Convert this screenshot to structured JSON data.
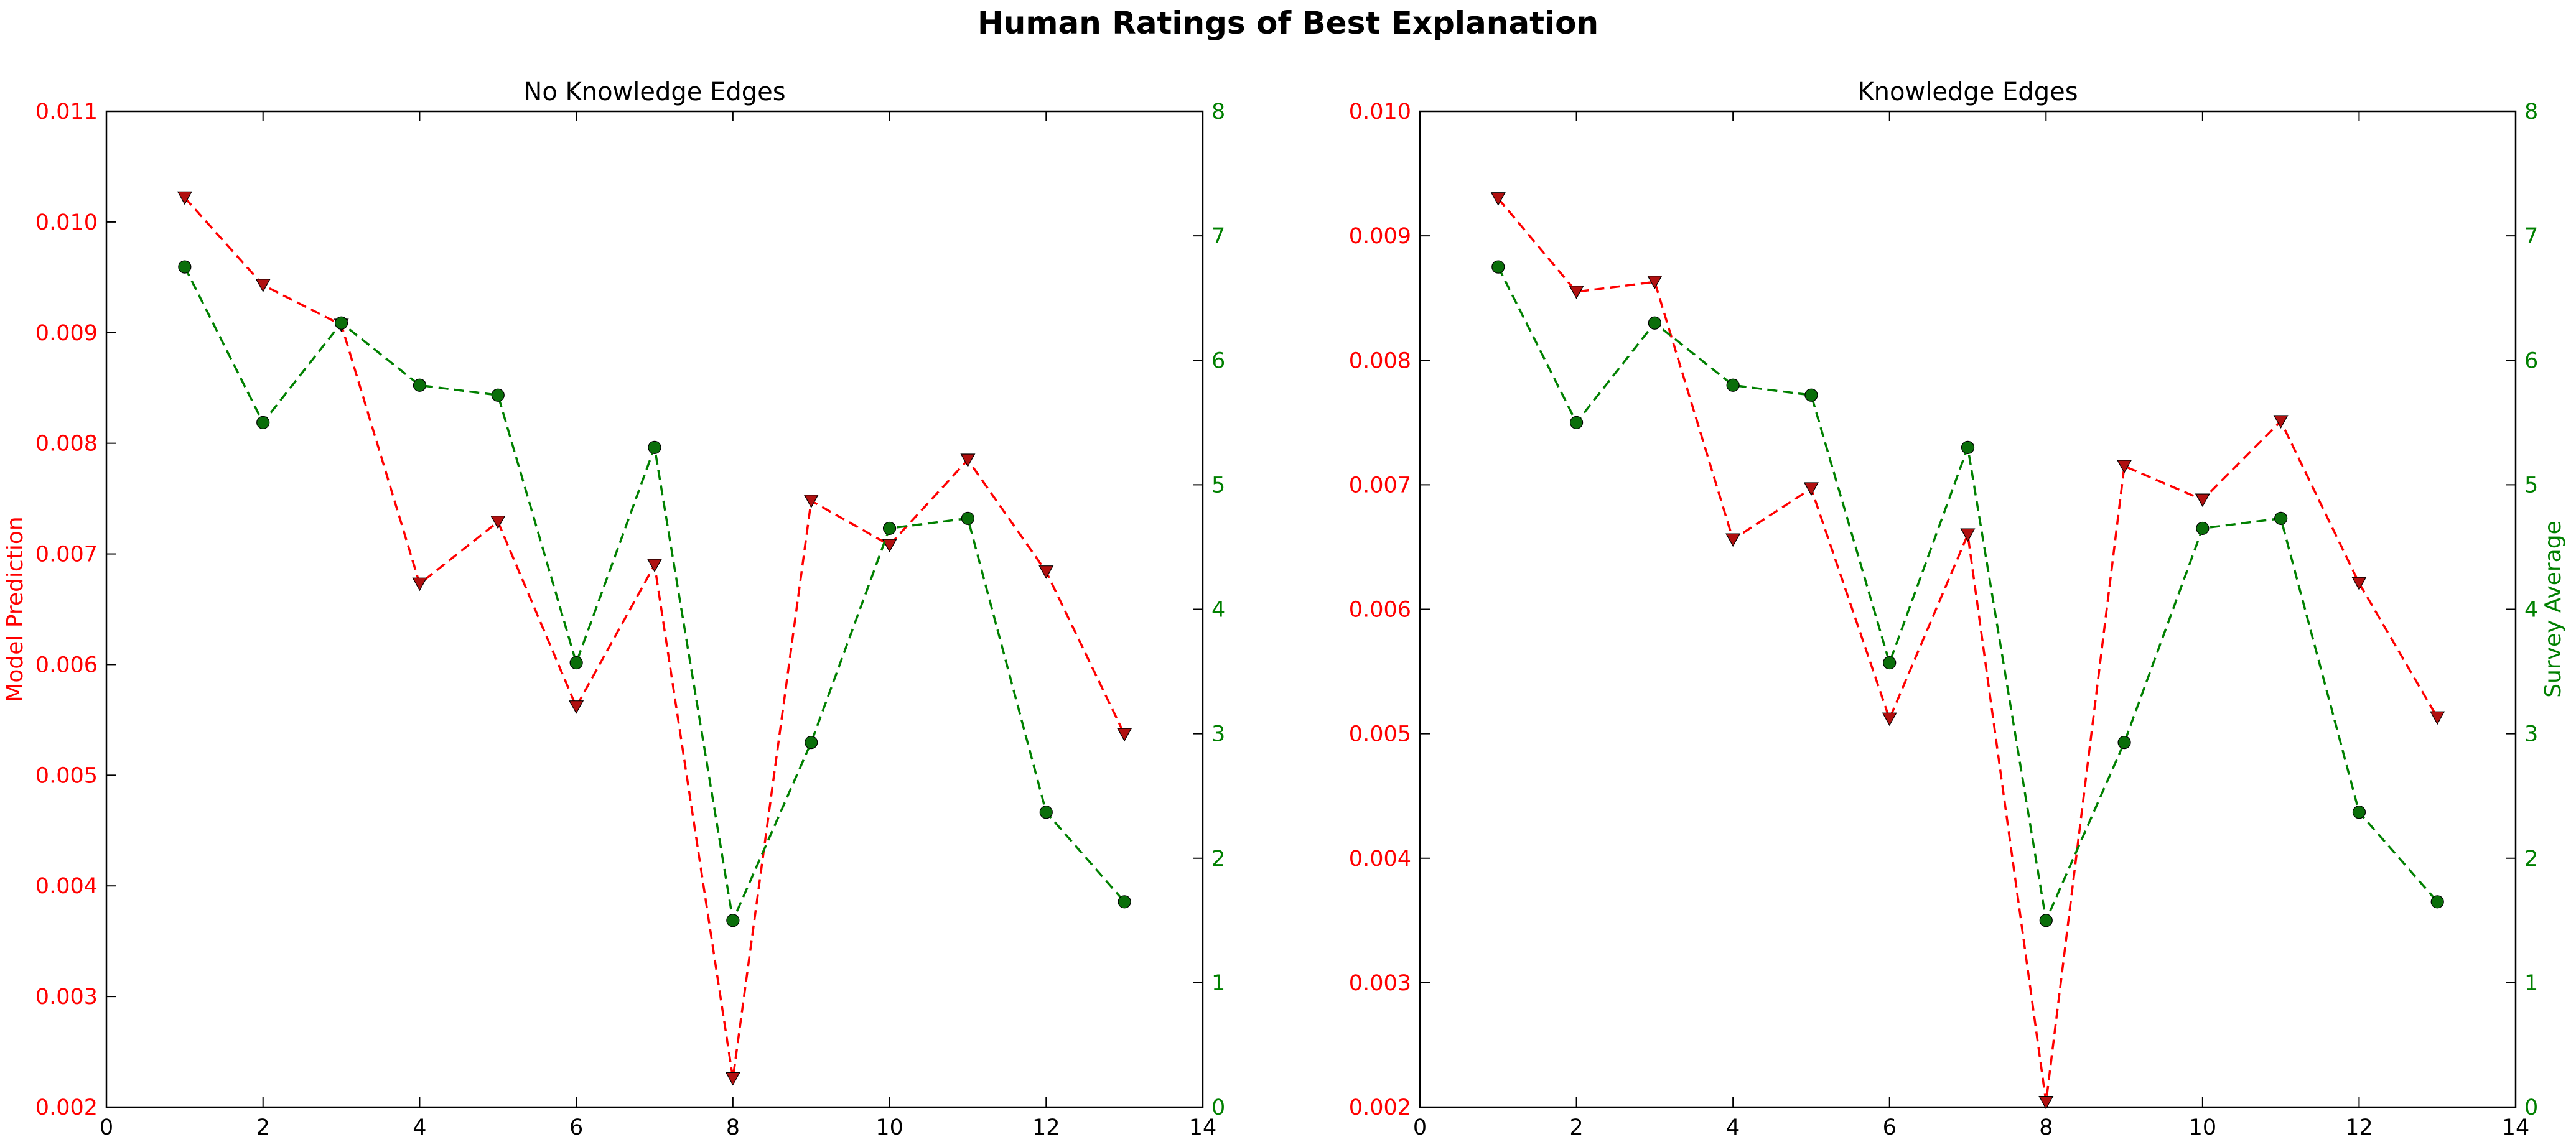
{
  "figure_title": "Human Ratings of Best Explanation",
  "colors": {
    "model": "#ff0000",
    "model_marker": "#b01010",
    "survey": "#008000",
    "survey_marker": "#0a6e0a",
    "axis": "#000000"
  },
  "chart_data": [
    {
      "type": "line",
      "title": "No Knowledge Edges",
      "xlabel": "",
      "xlim": [
        0,
        14
      ],
      "x_ticks": [
        0,
        2,
        4,
        6,
        8,
        10,
        12,
        14
      ],
      "x_tick_labels": [
        "0",
        "2",
        "4",
        "6",
        "8",
        "10",
        "12",
        "14"
      ],
      "ylabel_left": "Model Prediction",
      "ylim_left": [
        0.002,
        0.011
      ],
      "y_left_ticks": [
        0.002,
        0.003,
        0.004,
        0.005,
        0.006,
        0.007,
        0.008,
        0.009,
        0.01,
        0.011
      ],
      "y_left_tick_labels": [
        "0.002",
        "0.003",
        "0.004",
        "0.005",
        "0.006",
        "0.007",
        "0.008",
        "0.009",
        "0.010",
        "0.011"
      ],
      "ylabel_right": "",
      "ylim_right": [
        0,
        8
      ],
      "y_right_ticks": [
        0,
        1,
        2,
        3,
        4,
        5,
        6,
        7,
        8
      ],
      "y_right_tick_labels": [
        "0",
        "1",
        "2",
        "3",
        "4",
        "5",
        "6",
        "7",
        "8"
      ],
      "grid": false,
      "x": [
        1,
        2,
        3,
        4,
        5,
        6,
        7,
        8,
        9,
        10,
        11,
        12,
        13
      ],
      "series": [
        {
          "axis": "left",
          "style": "dashed",
          "marker": "triangle-down",
          "values": [
            0.01022,
            0.00943,
            0.00907,
            0.00673,
            0.00729,
            0.00562,
            0.0069,
            0.00226,
            0.00748,
            0.00708,
            0.00785,
            0.00684,
            0.00537
          ]
        },
        {
          "axis": "right",
          "style": "dashed",
          "marker": "circle",
          "values": [
            6.75,
            5.5,
            6.3,
            5.8,
            5.72,
            3.57,
            5.3,
            1.5,
            2.93,
            4.65,
            4.73,
            2.37,
            1.65
          ]
        }
      ]
    },
    {
      "type": "line",
      "title": "Knowledge Edges",
      "xlabel": "",
      "xlim": [
        0,
        14
      ],
      "x_ticks": [
        0,
        2,
        4,
        6,
        8,
        10,
        12,
        14
      ],
      "x_tick_labels": [
        "0",
        "2",
        "4",
        "6",
        "8",
        "10",
        "12",
        "14"
      ],
      "ylabel_left": "",
      "ylim_left": [
        0.002,
        0.01
      ],
      "y_left_ticks": [
        0.002,
        0.003,
        0.004,
        0.005,
        0.006,
        0.007,
        0.008,
        0.009,
        0.01
      ],
      "y_left_tick_labels": [
        "0.002",
        "0.003",
        "0.004",
        "0.005",
        "0.006",
        "0.007",
        "0.008",
        "0.009",
        "0.010"
      ],
      "ylabel_right": "Survey Average",
      "ylim_right": [
        0,
        8
      ],
      "y_right_ticks": [
        0,
        1,
        2,
        3,
        4,
        5,
        6,
        7,
        8
      ],
      "y_right_tick_labels": [
        "0",
        "1",
        "2",
        "3",
        "4",
        "5",
        "6",
        "7",
        "8"
      ],
      "grid": false,
      "x": [
        1,
        2,
        3,
        4,
        5,
        6,
        7,
        8,
        9,
        10,
        11,
        12,
        13
      ],
      "series": [
        {
          "axis": "left",
          "style": "dashed",
          "marker": "triangle-down",
          "values": [
            0.0093,
            0.00855,
            0.00863,
            0.00656,
            0.00697,
            0.00512,
            0.0066,
            0.00204,
            0.00715,
            0.00688,
            0.00751,
            0.00621,
            0.00513
          ]
        },
        {
          "axis": "right",
          "style": "dashed",
          "marker": "circle",
          "values": [
            6.75,
            5.5,
            6.3,
            5.8,
            5.72,
            3.57,
            5.3,
            1.5,
            2.93,
            4.65,
            4.73,
            2.37,
            1.65
          ]
        }
      ]
    }
  ]
}
